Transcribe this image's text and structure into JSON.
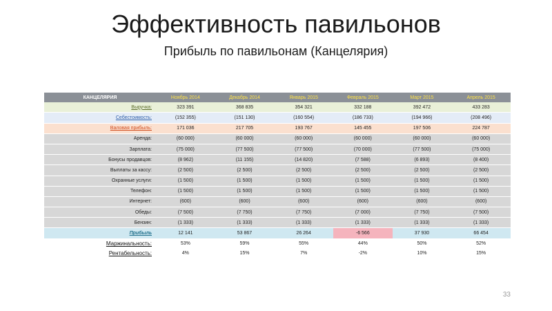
{
  "slide": {
    "title": "Эффективность павильонов",
    "subtitle": "Прибыль по павильонам (Канцелярия)",
    "page_number": "33"
  },
  "table": {
    "header": {
      "label": "КАНЦЕЛЯРИЯ",
      "months": [
        "Ноябрь 2014",
        "Декабрь 2014",
        "Январь 2015",
        "Февраль 2015",
        "Март 2015",
        "Апрель 2015"
      ]
    },
    "rows": [
      {
        "label": "Выручка:",
        "values": [
          "323 391",
          "368 835",
          "354 321",
          "332 188",
          "392 472",
          "433 283"
        ]
      },
      {
        "label": "Себестоимость:",
        "values": [
          "(152 355)",
          "(151 130)",
          "(160 554)",
          "(186 733)",
          "(194 966)",
          "(208 496)"
        ]
      },
      {
        "label": "Валовая прибыль:",
        "values": [
          "171 036",
          "217 705",
          "193 767",
          "145 455",
          "197 506",
          "224 787"
        ]
      },
      {
        "label": "Аренда:",
        "values": [
          "(60 000)",
          "(60 000)",
          "(60 000)",
          "(60 000)",
          "(60 000)",
          "(60 000)"
        ]
      },
      {
        "label": "Зарплата:",
        "values": [
          "(75 000)",
          "(77 500)",
          "(77 500)",
          "(70 000)",
          "(77 500)",
          "(75 000)"
        ]
      },
      {
        "label": "Бонусы продавцов:",
        "values": [
          "(8 962)",
          "(11 155)",
          "(14 820)",
          "(7 588)",
          "(6 893)",
          "(8 400)"
        ]
      },
      {
        "label": "Выплаты за кассу:",
        "values": [
          "(2 500)",
          "(2 500)",
          "(2 500)",
          "(2 500)",
          "(2 500)",
          "(2 500)"
        ]
      },
      {
        "label": "Охранные услуги:",
        "values": [
          "(1 500)",
          "(1 500)",
          "(1 500)",
          "(1 500)",
          "(1 500)",
          "(1 500)"
        ]
      },
      {
        "label": "Телефон:",
        "values": [
          "(1 500)",
          "(1 500)",
          "(1 500)",
          "(1 500)",
          "(1 500)",
          "(1 500)"
        ]
      },
      {
        "label": "Интернет:",
        "values": [
          "(600)",
          "(600)",
          "(600)",
          "(600)",
          "(600)",
          "(600)"
        ]
      },
      {
        "label": "Обеды:",
        "values": [
          "(7 500)",
          "(7 750)",
          "(7 750)",
          "(7 000)",
          "(7 750)",
          "(7 500)"
        ]
      },
      {
        "label": "Бензин:",
        "values": [
          "(1 333)",
          "(1 333)",
          "(1 333)",
          "(1 333)",
          "(1 333)",
          "(1 333)"
        ]
      },
      {
        "label": "Прибыль",
        "values": [
          "12 141",
          "53 867",
          "26 264",
          "-6 566",
          "37 930",
          "66 454"
        ]
      },
      {
        "label": "Маржинальность:",
        "values": [
          "53%",
          "59%",
          "55%",
          "44%",
          "50%",
          "52%"
        ]
      },
      {
        "label": "Рентабельность:",
        "values": [
          "4%",
          "15%",
          "7%",
          "-2%",
          "10%",
          "15%"
        ]
      }
    ]
  },
  "colors": {
    "header_bg": "#8b9097",
    "header_month_text": "#ffe24a",
    "revenue_bg": "#e9f0d8",
    "cost_bg": "#e4ecf7",
    "gross_bg": "#fbe0cf",
    "expense_bg": "#d7d7d7",
    "profit_bg": "#cfe8f1",
    "negative_bg": "#f5b4bd"
  }
}
